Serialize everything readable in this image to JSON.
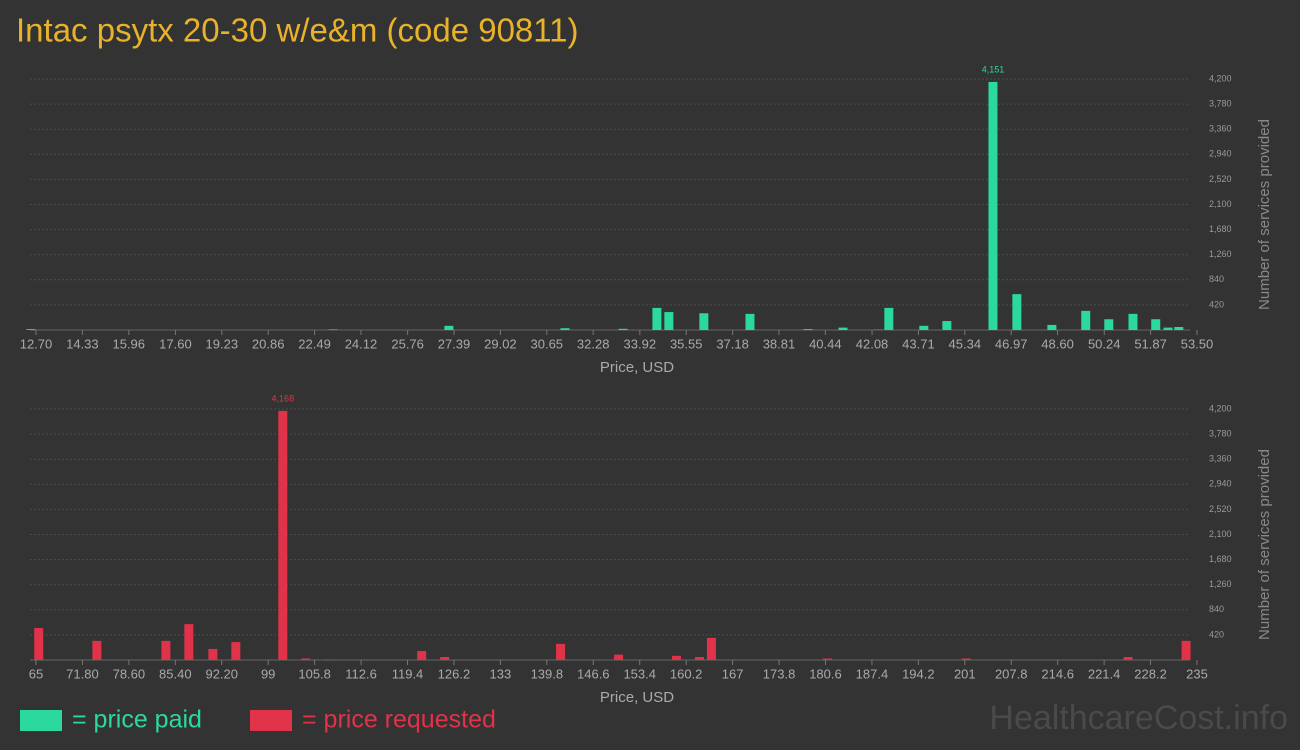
{
  "title": "Intac psytx 20-30 w/e&m (code 90811)",
  "watermark": "HealthcareCost.info",
  "chart_data": [
    {
      "type": "bar",
      "x_label": "Price, USD",
      "y_label": "Number of services provided",
      "xlim": [
        12.7,
        53.5
      ],
      "ylim": [
        0,
        4200
      ],
      "grid": true,
      "xticks": [
        {
          "value": 12.7,
          "label": "12.70"
        },
        14.33,
        15.96,
        {
          "value": 17.6,
          "label": "17.60"
        },
        19.23,
        20.86,
        22.49,
        24.12,
        25.76,
        27.39,
        29.02,
        30.65,
        32.28,
        33.92,
        35.55,
        37.18,
        38.81,
        40.44,
        42.08,
        43.71,
        45.34,
        46.97,
        {
          "value": 48.6,
          "label": "48.60"
        },
        50.24,
        51.87,
        {
          "value": 53.5,
          "label": "53.50"
        }
      ],
      "yticks": [
        420,
        840,
        {
          "value": 1260,
          "label": "1,260"
        },
        {
          "value": 1680,
          "label": "1,680"
        },
        {
          "value": 2100,
          "label": "2,100"
        },
        {
          "value": 2520,
          "label": "2,520"
        },
        {
          "value": 2940,
          "label": "2,940"
        },
        {
          "value": 3360,
          "label": "3,360"
        },
        {
          "value": 3780,
          "label": "3,780"
        },
        {
          "value": 4200,
          "label": "4,200"
        }
      ],
      "series": [
        {
          "name": "= price paid",
          "color": "#2bd99f",
          "x": [
            12.52,
            23.14,
            27.21,
            31.29,
            33.33,
            34.52,
            34.94,
            36.17,
            37.79,
            39.83,
            41.06,
            42.29,
            42.67,
            43.9,
            44.71,
            46.33,
            47.17,
            48.4,
            49.59,
            50.4,
            51.25,
            52.05,
            52.48,
            52.86
          ],
          "values": [
            15,
            10,
            70,
            30,
            20,
            370,
            300,
            280,
            270,
            15,
            40,
            5,
            370,
            70,
            150,
            4151,
            600,
            85,
            320,
            180,
            270,
            180,
            40,
            50
          ],
          "value_labels": [
            null,
            null,
            null,
            null,
            null,
            null,
            null,
            null,
            null,
            null,
            null,
            null,
            null,
            null,
            null,
            "4,151",
            null,
            null,
            null,
            null,
            null,
            null,
            null,
            null
          ]
        }
      ]
    },
    {
      "type": "bar",
      "x_label": "Price, USD",
      "y_label": "Number of services provided",
      "xlim": [
        65,
        235
      ],
      "ylim": [
        0,
        4200
      ],
      "grid": true,
      "xticks": [
        65,
        {
          "value": 71.8,
          "label": "71.80"
        },
        {
          "value": 78.6,
          "label": "78.60"
        },
        {
          "value": 85.4,
          "label": "85.40"
        },
        {
          "value": 92.2,
          "label": "92.20"
        },
        99,
        105.8,
        112.6,
        119.4,
        126.2,
        133,
        139.8,
        146.6,
        153.4,
        160.2,
        167,
        173.8,
        180.6,
        187.4,
        194.2,
        201,
        207.8,
        214.6,
        221.4,
        228.2,
        235
      ],
      "yticks": [
        420,
        840,
        {
          "value": 1260,
          "label": "1,260"
        },
        {
          "value": 1680,
          "label": "1,680"
        },
        {
          "value": 2100,
          "label": "2,100"
        },
        {
          "value": 2520,
          "label": "2,520"
        },
        {
          "value": 2940,
          "label": "2,940"
        },
        {
          "value": 3360,
          "label": "3,360"
        },
        {
          "value": 3780,
          "label": "3,780"
        },
        {
          "value": 4200,
          "label": "4,200"
        }
      ],
      "series": [
        {
          "name": "= price requested",
          "color": "#e0334a",
          "x": [
            65.4,
            73.92,
            84.02,
            87.38,
            90.9,
            94.26,
            101.14,
            104.5,
            107.87,
            121.47,
            124.84,
            141.81,
            150.3,
            158.78,
            162.15,
            163.9,
            180.87,
            201.21,
            224.91,
            233.4
          ],
          "values": [
            535,
            320,
            320,
            600,
            185,
            300,
            4168,
            25,
            10,
            150,
            50,
            270,
            90,
            70,
            50,
            370,
            25,
            25,
            50,
            320
          ],
          "value_labels": [
            null,
            null,
            null,
            null,
            null,
            null,
            "4,168",
            null,
            null,
            null,
            null,
            null,
            null,
            null,
            null,
            null,
            null,
            null,
            null,
            null
          ]
        }
      ]
    }
  ]
}
